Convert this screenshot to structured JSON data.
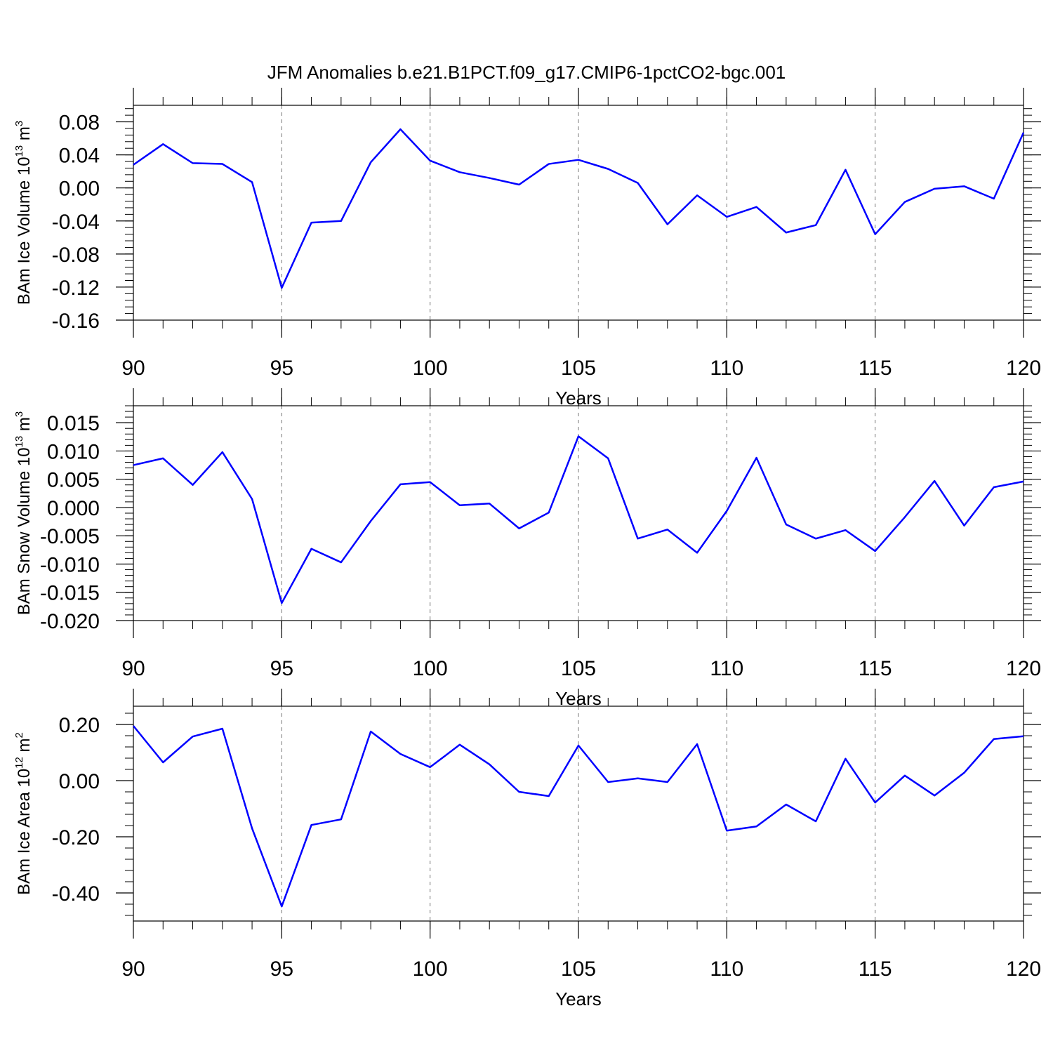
{
  "chart_data": [
    {
      "type": "line",
      "title": "JFM Anomalies b.e21.B1PCT.f09_g17.CMIP6-1pctCO2-bgc.001",
      "ylabel": [
        "BAm Ice Volume 10",
        "13",
        " m",
        "3"
      ],
      "xlabel": "Years",
      "color": "#0000ff",
      "xgrid": true,
      "x": [
        90,
        91,
        92,
        93,
        94,
        95,
        96,
        97,
        98,
        99,
        100,
        101,
        102,
        103,
        104,
        105,
        106,
        107,
        108,
        109,
        110,
        111,
        112,
        113,
        114,
        115,
        116,
        117,
        118,
        119,
        120
      ],
      "values": [
        0.028,
        0.053,
        0.03,
        0.029,
        0.007,
        -0.121,
        -0.042,
        -0.04,
        0.031,
        0.071,
        0.033,
        0.019,
        0.012,
        0.004,
        0.029,
        0.034,
        0.023,
        0.006,
        -0.044,
        -0.009,
        -0.035,
        -0.023,
        -0.054,
        -0.045,
        0.022,
        -0.056,
        -0.017,
        -0.001,
        0.002,
        -0.013,
        0.067
      ],
      "xlim": [
        90,
        120
      ],
      "xticks": [
        90,
        95,
        100,
        105,
        110,
        115,
        120
      ],
      "ylim": [
        -0.16,
        0.1
      ],
      "yticks": [
        {
          "value": -0.16,
          "label": "-0.16"
        },
        {
          "value": -0.12,
          "label": "-0.12"
        },
        {
          "value": -0.08,
          "label": "-0.08"
        },
        {
          "value": -0.04,
          "label": "-0.04"
        },
        {
          "value": 0,
          "label": "0.00"
        },
        {
          "value": 0.04,
          "label": "0.04"
        },
        {
          "value": 0.08,
          "label": "0.08"
        }
      ]
    },
    {
      "type": "line",
      "ylabel": [
        "BAm Snow Volume 10",
        "13",
        " m",
        "3"
      ],
      "xlabel": "Years",
      "color": "#0000ff",
      "xgrid": true,
      "x": [
        90,
        91,
        92,
        93,
        94,
        95,
        96,
        97,
        98,
        99,
        100,
        101,
        102,
        103,
        104,
        105,
        106,
        107,
        108,
        109,
        110,
        111,
        112,
        113,
        114,
        115,
        116,
        117,
        118,
        119,
        120
      ],
      "values": [
        0.0075,
        0.0087,
        0.004,
        0.0098,
        0.0015,
        -0.0169,
        -0.0073,
        -0.0097,
        -0.0024,
        0.0041,
        0.0045,
        0.0004,
        0.0007,
        -0.0037,
        -0.0009,
        0.0126,
        0.0087,
        -0.0055,
        -0.0039,
        -0.008,
        -0.0006,
        0.0088,
        -0.003,
        -0.0055,
        -0.004,
        -0.0077,
        -0.0017,
        0.0047,
        -0.0032,
        0.0036,
        0.0046
      ],
      "xlim": [
        90,
        120
      ],
      "xticks": [
        90,
        95,
        100,
        105,
        110,
        115,
        120
      ],
      "ylim": [
        -0.02,
        0.018
      ],
      "yticks": [
        {
          "value": -0.02,
          "label": "-0.020"
        },
        {
          "value": -0.015,
          "label": "-0.015"
        },
        {
          "value": -0.01,
          "label": "-0.010"
        },
        {
          "value": -0.005,
          "label": "-0.005"
        },
        {
          "value": 0,
          "label": "0.000"
        },
        {
          "value": 0.005,
          "label": "0.005"
        },
        {
          "value": 0.01,
          "label": "0.010"
        },
        {
          "value": 0.015,
          "label": "0.015"
        }
      ]
    },
    {
      "type": "line",
      "ylabel": [
        "BAm Ice Area 10",
        "12",
        " m",
        "2"
      ],
      "xlabel": "Years",
      "color": "#0000ff",
      "xgrid": true,
      "x": [
        90,
        91,
        92,
        93,
        94,
        95,
        96,
        97,
        98,
        99,
        100,
        101,
        102,
        103,
        104,
        105,
        106,
        107,
        108,
        109,
        110,
        111,
        112,
        113,
        114,
        115,
        116,
        117,
        118,
        119,
        120
      ],
      "values": [
        0.195,
        0.065,
        0.157,
        0.185,
        -0.17,
        -0.448,
        -0.158,
        -0.138,
        0.175,
        0.095,
        0.048,
        0.128,
        0.058,
        -0.04,
        -0.055,
        0.125,
        -0.005,
        0.008,
        -0.005,
        0.13,
        -0.178,
        -0.163,
        -0.085,
        -0.145,
        0.078,
        -0.078,
        0.018,
        -0.053,
        0.028,
        0.148,
        0.158
      ],
      "xlim": [
        90,
        120
      ],
      "xticks": [
        90,
        95,
        100,
        105,
        110,
        115,
        120
      ],
      "ylim": [
        -0.5,
        0.265
      ],
      "yticks": [
        {
          "value": -0.4,
          "label": "-0.40"
        },
        {
          "value": -0.2,
          "label": "-0.20"
        },
        {
          "value": 0,
          "label": "0.00"
        },
        {
          "value": 0.2,
          "label": "0.20"
        }
      ]
    }
  ]
}
